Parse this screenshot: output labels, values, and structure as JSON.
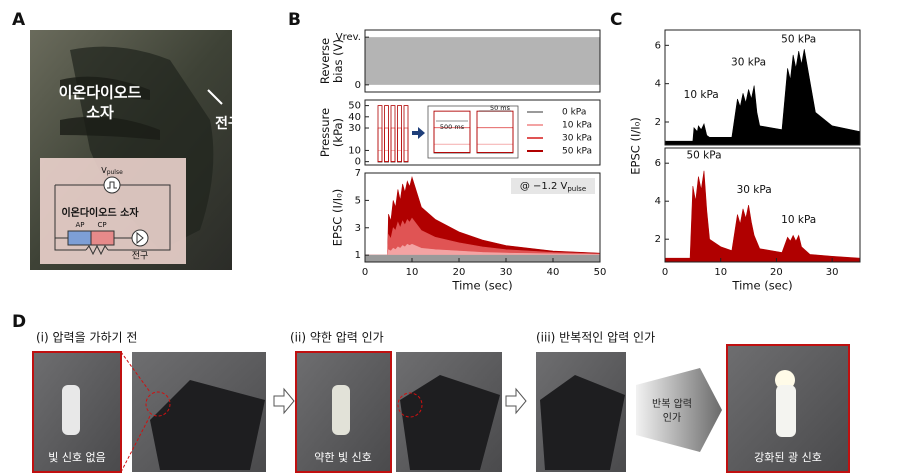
{
  "panel_labels": [
    "A",
    "B",
    "C",
    "D"
  ],
  "panel_a": {
    "hand_label": [
      "이온다이오드",
      "소자"
    ],
    "bulb_label": "전구",
    "circuit": {
      "source": "V",
      "source_sub": "pulse",
      "device": "이온다이오드 소자",
      "ap": "AP",
      "cp": "CP",
      "bulb": "전구"
    }
  },
  "chart_data": [
    {
      "type": "band",
      "ylabel": [
        "Reverse",
        "bias (V)"
      ],
      "xlim": [
        0,
        50
      ],
      "ylim": [
        -0.15,
        1.15
      ],
      "yticks": [
        0,
        {
          "value": 1,
          "label": "Vrev."
        }
      ],
      "x": [
        0,
        50
      ],
      "values": [
        1,
        1
      ],
      "color": "#b4b4b4"
    },
    {
      "type": "pulse",
      "ylabel": [
        "Pressure",
        "(kPa)"
      ],
      "ylim": [
        -3,
        55
      ],
      "yticks": [
        0,
        10,
        30,
        40,
        50
      ],
      "annotations": [
        "500 ms",
        "50 ms"
      ],
      "series": [
        {
          "name": "0 kPa",
          "color": "#9a9a9a",
          "values": [
            0,
            0,
            0,
            0,
            0
          ]
        },
        {
          "name": "10 kPa",
          "color": "#f3a3a3",
          "values": [
            10,
            10,
            10,
            10,
            10
          ]
        },
        {
          "name": "30 kPa",
          "color": "#e05454",
          "values": [
            30,
            30,
            30,
            30,
            30
          ]
        },
        {
          "name": "50 kPa",
          "color": "#b00000",
          "values": [
            50,
            50,
            50,
            50,
            50
          ]
        }
      ]
    },
    {
      "type": "area",
      "ylabel": [
        "EPSC (I/I₀)"
      ],
      "xlabel": "Time (sec)",
      "xlim": [
        0,
        50
      ],
      "ylim": [
        0.5,
        7
      ],
      "xticks": [
        0,
        10,
        20,
        30,
        40,
        50
      ],
      "yticks": [
        1,
        3,
        5,
        7
      ],
      "annotation": "@ −1.2 V",
      "annotation_sub": "pulse",
      "x": [
        0,
        4.8,
        5,
        5.5,
        6,
        6.5,
        7,
        7.5,
        8,
        8.5,
        9,
        9.5,
        10,
        12,
        15,
        20,
        25,
        30,
        40,
        50
      ],
      "series": [
        {
          "name": "50 kPa",
          "color": "#b00000",
          "values": [
            1,
            1,
            4,
            3.5,
            5,
            4.5,
            5.8,
            5,
            6.2,
            5.6,
            6.4,
            6,
            6.7,
            4.5,
            3.6,
            2.7,
            2.1,
            1.7,
            1.3,
            1.15
          ]
        },
        {
          "name": "30 kPa",
          "color": "#e05454",
          "values": [
            1,
            1,
            2.5,
            2.2,
            3,
            2.8,
            3.4,
            3,
            3.5,
            3.2,
            3.6,
            3.4,
            3.7,
            2.8,
            2.3,
            1.9,
            1.6,
            1.4,
            1.2,
            1.1
          ]
        },
        {
          "name": "10 kPa",
          "color": "#f3a3a3",
          "values": [
            1,
            1,
            1.4,
            1.3,
            1.5,
            1.4,
            1.6,
            1.5,
            1.7,
            1.6,
            1.8,
            1.7,
            1.8,
            1.5,
            1.4,
            1.3,
            1.2,
            1.15,
            1.1,
            1.05
          ]
        },
        {
          "name": "0 kPa",
          "color": "#9a9a9a",
          "values": [
            1,
            1,
            1,
            1,
            1,
            1,
            1,
            1,
            1,
            1,
            1,
            1,
            1,
            1,
            1,
            1,
            1,
            1,
            1,
            1
          ]
        }
      ]
    },
    {
      "type": "area",
      "ylabel": [
        "EPSC (I/I₀)"
      ],
      "xlim": [
        0,
        35
      ],
      "ylim": [
        0.8,
        6.8
      ],
      "yticks": [
        2,
        4,
        6
      ],
      "annotations": [
        "10 kPa",
        "30 kPa",
        "50 kPa"
      ],
      "x": [
        0,
        5,
        5.2,
        5.8,
        6,
        6.5,
        7,
        7.5,
        8,
        12,
        13,
        13.5,
        14,
        14.5,
        15,
        15.5,
        16,
        16.5,
        17,
        21,
        22,
        22.5,
        23,
        23.5,
        24,
        24.5,
        25,
        27,
        30,
        35
      ],
      "series": [
        {
          "color": "#000000",
          "values": [
            1,
            1,
            1.7,
            1.5,
            1.8,
            1.6,
            1.9,
            1.3,
            1.2,
            1.2,
            3.2,
            2.8,
            3.5,
            3,
            3.7,
            3.2,
            3.9,
            2.5,
            1.8,
            1.6,
            4.8,
            4.2,
            5.5,
            4.8,
            5.7,
            5,
            5.8,
            2.5,
            1.8,
            1.5
          ]
        }
      ]
    },
    {
      "type": "area",
      "xlabel": "Time (sec)",
      "xlim": [
        0,
        35
      ],
      "ylim": [
        0.8,
        6.8
      ],
      "xticks": [
        0,
        10,
        20,
        30
      ],
      "yticks": [
        2,
        4,
        6
      ],
      "annotations": [
        "50 kPa",
        "30 kPa",
        "10 kPa"
      ],
      "x": [
        0,
        4.5,
        5,
        5.5,
        6,
        6.5,
        7,
        7.5,
        8,
        10,
        12,
        13,
        13.5,
        14,
        14.5,
        15,
        15.5,
        16,
        17,
        21,
        22,
        22.5,
        23,
        23.5,
        24,
        24.5,
        26,
        30,
        35
      ],
      "series": [
        {
          "color": "#b00000",
          "values": [
            1,
            1,
            4.8,
            4,
            5.3,
            4.6,
            5.6,
            3.5,
            2,
            1.6,
            1.4,
            3.3,
            2.8,
            3.6,
            3.1,
            3.8,
            2.9,
            2.2,
            1.5,
            1.3,
            2.1,
            1.9,
            2.2,
            1.9,
            2.2,
            1.6,
            1.2,
            1.1,
            1
          ]
        }
      ]
    }
  ],
  "panel_d": {
    "steps": [
      "(i) 압력을 가하기 전",
      "(ii) 약한 압력 인가",
      "(iii) 반복적인 압력 인가"
    ],
    "photo_labels": [
      "빛 신호 없음",
      "약한 빛 신호",
      "강화된 광 신호"
    ],
    "arrow_label": [
      "반복 압력",
      "인가"
    ]
  }
}
